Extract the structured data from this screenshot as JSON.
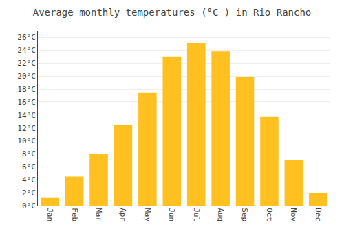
{
  "chart_data": {
    "type": "bar",
    "title": "Average monthly temperatures (°C ) in Rio Rancho",
    "categories": [
      "Jan",
      "Feb",
      "Mar",
      "Apr",
      "May",
      "Jun",
      "Jul",
      "Aug",
      "Sep",
      "Oct",
      "Nov",
      "Dec"
    ],
    "values": [
      1.2,
      4.5,
      8.0,
      12.5,
      17.5,
      23.0,
      25.2,
      23.8,
      19.8,
      13.8,
      7.0,
      2.0
    ],
    "color": "#FFC020",
    "ylim": [
      0,
      27
    ],
    "yticks": [
      {
        "value": 0,
        "label": "0°C"
      },
      {
        "value": 2,
        "label": "2°C"
      },
      {
        "value": 4,
        "label": "4°C"
      },
      {
        "value": 6,
        "label": "6°C"
      },
      {
        "value": 8,
        "label": "8°C"
      },
      {
        "value": 10,
        "label": "10°C"
      },
      {
        "value": 12,
        "label": "12°C"
      },
      {
        "value": 14,
        "label": "14°C"
      },
      {
        "value": 16,
        "label": "16°C"
      },
      {
        "value": 18,
        "label": "18°C"
      },
      {
        "value": 20,
        "label": "20°C"
      },
      {
        "value": 22,
        "label": "22°C"
      },
      {
        "value": 24,
        "label": "24°C"
      },
      {
        "value": 26,
        "label": "26°C"
      }
    ],
    "grid": true
  }
}
